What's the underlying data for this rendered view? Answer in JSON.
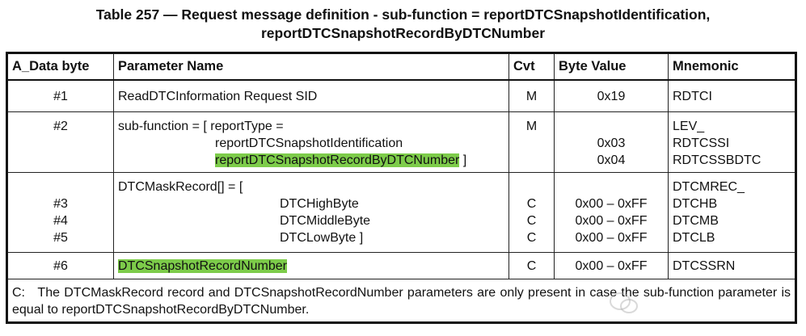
{
  "title": {
    "line1": "Table 257 — Request message definition - sub-function = reportDTCSnapshotIdentification,",
    "line2": "reportDTCSnapshotRecordByDTCNumber"
  },
  "headers": [
    "A_Data byte",
    "Parameter Name",
    "Cvt",
    "Byte Value",
    "Mnemonic"
  ],
  "rows": [
    {
      "byte": [
        "#1"
      ],
      "param": [
        "ReadDTCInformation Request SID"
      ],
      "cvt": [
        "M"
      ],
      "value": [
        "0x19"
      ],
      "mnemonic": [
        "RDTCI"
      ]
    },
    {
      "byte": [
        "#2"
      ],
      "param": [
        "sub-function = [ reportType =",
        "reportDTCSnapshotIdentification",
        "reportDTCSnapshotRecordByDTCNumber",
        " ]"
      ],
      "cvt": [
        "M"
      ],
      "value": [
        "",
        "0x03",
        "0x04"
      ],
      "mnemonic": [
        "LEV_",
        "RDTCSSI",
        "RDTCSSBDTC"
      ]
    },
    {
      "byte": [
        "",
        "#3",
        "#4",
        "#5"
      ],
      "param": [
        "DTCMaskRecord[] = [",
        "DTCHighByte",
        "DTCMiddleByte",
        "DTCLowByte ]"
      ],
      "cvt": [
        "",
        "C",
        "C",
        "C"
      ],
      "value": [
        "",
        "0x00 – 0xFF",
        "0x00 – 0xFF",
        "0x00 – 0xFF"
      ],
      "mnemonic": [
        "DTCMREC_",
        "DTCHB",
        "DTCMB",
        "DTCLB"
      ]
    },
    {
      "byte": [
        "#6"
      ],
      "param": [
        "DTCSnapshotRecordNumber"
      ],
      "cvt": [
        "C"
      ],
      "value": [
        "0x00 – 0xFF"
      ],
      "mnemonic": [
        "DTCSSRN"
      ]
    }
  ],
  "note": "C:   The DTCMaskRecord record and DTCSnapshotRecordNumber parameters are only present in case the sub-function parameter is equal to reportDTCSnapshotRecordByDTCNumber.",
  "highlight_color": "#7dcc4a",
  "watermark": "Neeolag"
}
